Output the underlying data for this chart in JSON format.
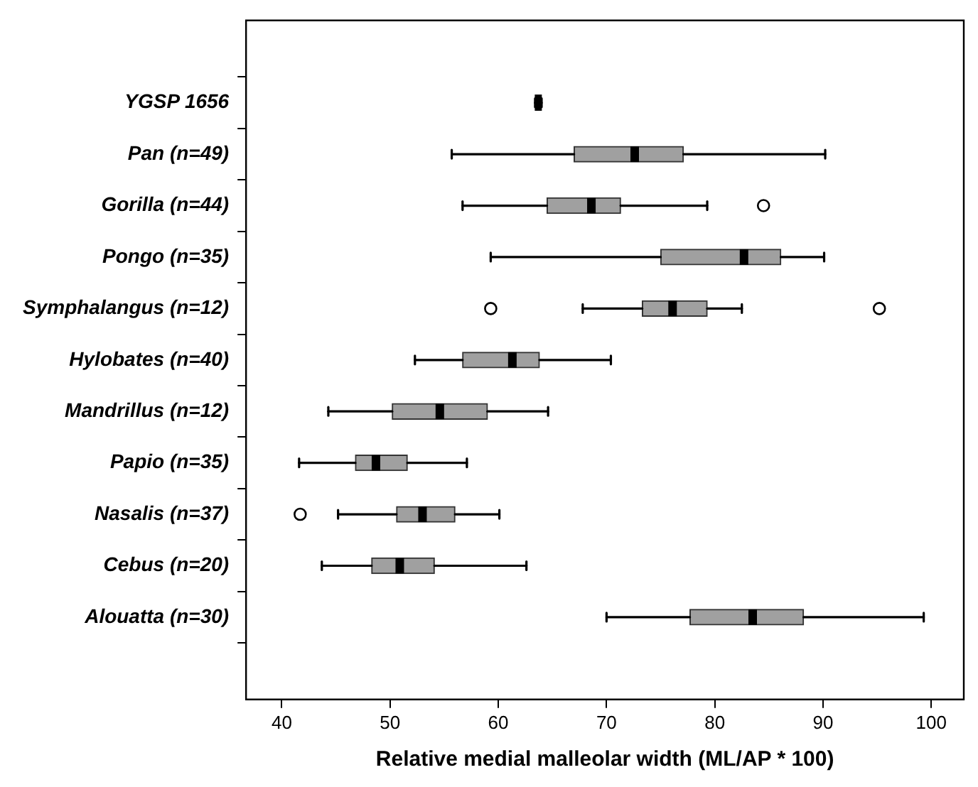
{
  "chart_data": {
    "type": "box",
    "orientation": "horizontal",
    "xlabel": "Relative medial malleolar width (ML/AP * 100)",
    "categories": [
      "YGSP 1656",
      "Pan (n=49)",
      "Gorilla (n=44)",
      "Pongo (n=35)",
      "Symphalangus (n=12)",
      "Hylobates (n=40)",
      "Mandrillus (n=12)",
      "Papio (n=35)",
      "Nasalis (n=37)",
      "Cebus (n=20)",
      "Alouatta (n=30)"
    ],
    "boxes": [
      {
        "low": 63.4,
        "q1": 63.4,
        "median": 63.7,
        "q3": 64.0,
        "high": 64.0
      },
      {
        "low": 55.7,
        "q1": 67.0,
        "median": 72.6,
        "q3": 77.1,
        "high": 90.2
      },
      {
        "low": 56.7,
        "q1": 64.5,
        "median": 68.6,
        "q3": 71.3,
        "high": 79.3,
        "outliers": [
          84.5
        ]
      },
      {
        "low": 59.3,
        "q1": 75.0,
        "median": 82.7,
        "q3": 86.1,
        "high": 90.1
      },
      {
        "low": 67.8,
        "q1": 73.3,
        "median": 76.1,
        "q3": 79.3,
        "high": 82.5,
        "outliers": [
          59.3,
          95.2
        ]
      },
      {
        "low": 52.3,
        "q1": 56.7,
        "median": 61.3,
        "q3": 63.8,
        "high": 70.4
      },
      {
        "low": 44.3,
        "q1": 50.2,
        "median": 54.6,
        "q3": 59.0,
        "high": 64.6
      },
      {
        "low": 41.6,
        "q1": 46.8,
        "median": 48.7,
        "q3": 51.6,
        "high": 57.1
      },
      {
        "low": 45.2,
        "q1": 50.6,
        "median": 53.0,
        "q3": 56.0,
        "high": 60.1,
        "outliers": [
          41.7
        ]
      },
      {
        "low": 43.7,
        "q1": 48.3,
        "median": 50.9,
        "q3": 54.1,
        "high": 62.6
      },
      {
        "low": 70.0,
        "q1": 77.7,
        "median": 83.5,
        "q3": 88.2,
        "high": 99.3
      }
    ],
    "colors": [
      "#000000",
      "#a0a0a0",
      "#a0a0a0",
      "#a0a0a0",
      "#a0a0a0",
      "#a0a0a0",
      "#a0a0a0",
      "#a0a0a0",
      "#a0a0a0",
      "#a0a0a0",
      "#a0a0a0"
    ],
    "xlim": [
      36.7,
      103
    ],
    "xticks": [
      40,
      50,
      60,
      70,
      80,
      90,
      100
    ],
    "grid": false,
    "legend": false
  }
}
